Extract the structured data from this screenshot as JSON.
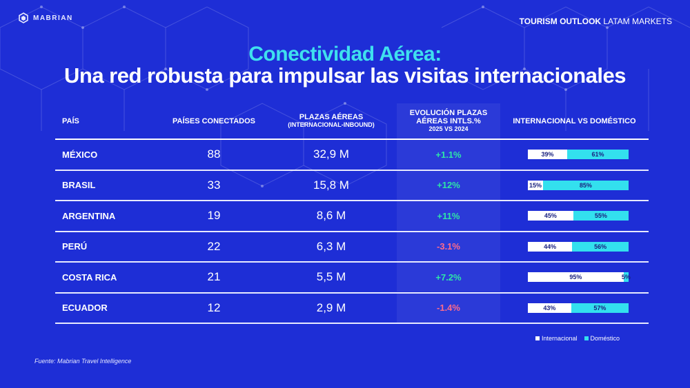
{
  "brand": {
    "logo_text": "MABRIAN"
  },
  "header": {
    "bold": "TOURISM OUTLOOK",
    "rest": " LATAM MARKETS"
  },
  "title": {
    "line1": "Conectividad Aérea:",
    "line2": "Una red robusta para impulsar las visitas internacionales"
  },
  "colors": {
    "background": "#1e2ed6",
    "accent_cyan": "#3fe0ee",
    "positive": "#2ee6a8",
    "negative": "#ff6b8b",
    "international": "#ffffff",
    "domestic": "#33e0ee"
  },
  "table": {
    "headers": {
      "country": "PAÍS",
      "connected": "PAÍSES CONECTADOS",
      "seats": "PLAZAS AÉREAS",
      "seats_sub": "(INTERNACIONAL-INBOUND)",
      "evo1": "EVOLUCIÓN PLAZAS",
      "evo2": "AÉREAS INTLS.%",
      "evo3": "2025 VS 2024",
      "split": "INTERNACIONAL VS DOMÉSTICO"
    }
  },
  "chart_data": {
    "type": "table",
    "columns": [
      "PAÍS",
      "PAÍSES CONECTADOS",
      "PLAZAS AÉREAS (INTERNACIONAL-INBOUND)",
      "EVOLUCIÓN PLAZAS AÉREAS INTLS.% 2025 VS 2024",
      "INTERNACIONAL VS DOMÉSTICO"
    ],
    "rows": [
      {
        "country": "MÉXICO",
        "connected": "88",
        "seats": "32,9 M",
        "evolution": "+1.1%",
        "trend": "up",
        "international": 39,
        "domestic": 61,
        "int_label": "39%",
        "dom_label": "61%"
      },
      {
        "country": "BRASIL",
        "connected": "33",
        "seats": "15,8 M",
        "evolution": "+12%",
        "trend": "up",
        "international": 15,
        "domestic": 85,
        "int_label": "15%",
        "dom_label": "85%"
      },
      {
        "country": "ARGENTINA",
        "connected": "19",
        "seats": "8,6 M",
        "evolution": "+11%",
        "trend": "up",
        "international": 45,
        "domestic": 55,
        "int_label": "45%",
        "dom_label": "55%"
      },
      {
        "country": "PERÚ",
        "connected": "22",
        "seats": "6,3 M",
        "evolution": "-3.1%",
        "trend": "down",
        "international": 44,
        "domestic": 56,
        "int_label": "44%",
        "dom_label": "56%"
      },
      {
        "country": "COSTA RICA",
        "connected": "21",
        "seats": "5,5 M",
        "evolution": "+7.2%",
        "trend": "up",
        "international": 95,
        "domestic": 5,
        "int_label": "95%",
        "dom_label": "5%"
      },
      {
        "country": "ECUADOR",
        "connected": "12",
        "seats": "2,9 M",
        "evolution": "-1.4%",
        "trend": "down",
        "international": 43,
        "domestic": 57,
        "int_label": "43%",
        "dom_label": "57%"
      }
    ],
    "legend": [
      "Internacional",
      "Doméstico"
    ]
  },
  "legend": {
    "international": "Internacional",
    "domestic": "Doméstico"
  },
  "source": "Fuente: Mabrian Travel Intelligence"
}
